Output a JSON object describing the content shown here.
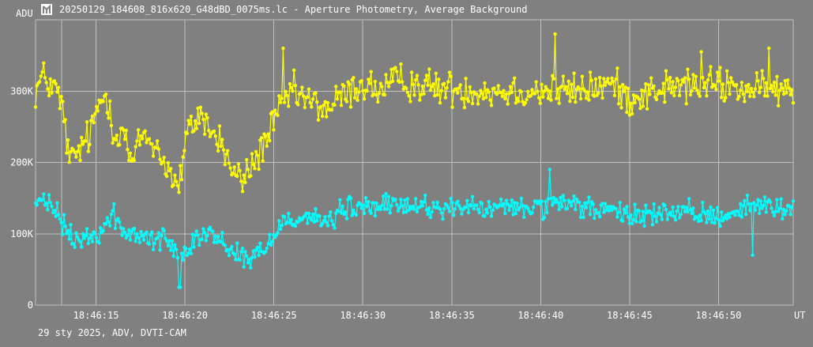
{
  "window": {
    "title": "20250129_184608_816x620_G48dBD_0075ms.lc - Aperture Photometry, Average Background",
    "footer": "29 sty 2025, ADV, DVTI-CAM"
  },
  "colors": {
    "background": "#808080",
    "grid": "#c0c0c0",
    "text": "#ffffff",
    "series_target": "#ffff00",
    "series_background": "#00ffff"
  },
  "chart_data": {
    "type": "line",
    "title": "20250129_184608_816x620_G48dBD_0075ms.lc - Aperture Photometry, Average Background",
    "ylabel": "ADU",
    "xlabel": "UT",
    "grid": true,
    "ylim": [
      0,
      400000
    ],
    "xlim": [
      "18:46:11.6",
      "18:46:54.2"
    ],
    "y_ticks": [
      {
        "value": 0,
        "label": "0"
      },
      {
        "value": 100000,
        "label": "100K"
      },
      {
        "value": 200000,
        "label": "200K"
      },
      {
        "value": 300000,
        "label": "300K"
      }
    ],
    "x_ticks": [
      {
        "value": 3,
        "label": "18:46:15"
      },
      {
        "value": 8,
        "label": "18:46:20"
      },
      {
        "value": 13,
        "label": "18:46:25"
      },
      {
        "value": 18,
        "label": "18:46:30"
      },
      {
        "value": 23,
        "label": "18:46:35"
      },
      {
        "value": 28,
        "label": "18:46:40"
      },
      {
        "value": 33,
        "label": "18:46:45"
      },
      {
        "value": 38,
        "label": "18:46:50"
      }
    ],
    "x_range_seconds_after_18_46_12": [
      -0.4,
      42.2
    ],
    "points_per_series": 561,
    "series": [
      {
        "id": "target",
        "color": "#ffff00",
        "profile": [
          [
            -0.4,
            300000
          ],
          [
            0.0,
            320000
          ],
          [
            0.8,
            300000
          ],
          [
            1.2,
            265000
          ],
          [
            1.5,
            200000
          ],
          [
            2.0,
            215000
          ],
          [
            2.7,
            240000
          ],
          [
            3.2,
            285000
          ],
          [
            3.6,
            295000
          ],
          [
            4.1,
            235000
          ],
          [
            4.5,
            250000
          ],
          [
            5.0,
            195000
          ],
          [
            5.6,
            240000
          ],
          [
            6.3,
            225000
          ],
          [
            7.1,
            190000
          ],
          [
            7.6,
            160000
          ],
          [
            8.2,
            245000
          ],
          [
            8.9,
            270000
          ],
          [
            9.5,
            240000
          ],
          [
            10.0,
            230000
          ],
          [
            10.7,
            185000
          ],
          [
            11.2,
            175000
          ],
          [
            11.8,
            195000
          ],
          [
            12.4,
            225000
          ],
          [
            13.0,
            255000
          ],
          [
            13.5,
            280000
          ],
          [
            14.0,
            300000
          ],
          [
            15.0,
            285000
          ],
          [
            16.0,
            275000
          ],
          [
            17.0,
            295000
          ],
          [
            18.0,
            310000
          ],
          [
            19.0,
            300000
          ],
          [
            20.0,
            315000
          ],
          [
            22.0,
            305000
          ],
          [
            25.0,
            300000
          ],
          [
            30.0,
            300000
          ],
          [
            32.0,
            310000
          ],
          [
            33.0,
            290000
          ],
          [
            35.0,
            305000
          ],
          [
            38.0,
            310000
          ],
          [
            40.0,
            300000
          ],
          [
            42.2,
            300000
          ]
        ],
        "noise": 28000,
        "peaks": [
          {
            "x": 13.5,
            "value": 360000
          },
          {
            "x": 28.8,
            "value": 380000
          },
          {
            "x": 37.0,
            "value": 355000
          },
          {
            "x": 40.8,
            "value": 360000
          }
        ]
      },
      {
        "id": "background",
        "color": "#00ffff",
        "profile": [
          [
            -0.4,
            145000
          ],
          [
            0.5,
            140000
          ],
          [
            1.0,
            120000
          ],
          [
            1.5,
            95000
          ],
          [
            2.5,
            90000
          ],
          [
            3.5,
            110000
          ],
          [
            4.0,
            130000
          ],
          [
            4.5,
            100000
          ],
          [
            6.0,
            95000
          ],
          [
            7.0,
            90000
          ],
          [
            7.8,
            70000
          ],
          [
            8.5,
            95000
          ],
          [
            9.5,
            100000
          ],
          [
            10.5,
            80000
          ],
          [
            11.5,
            65000
          ],
          [
            12.5,
            75000
          ],
          [
            13.0,
            100000
          ],
          [
            13.5,
            120000
          ],
          [
            15.0,
            125000
          ],
          [
            16.0,
            115000
          ],
          [
            17.0,
            135000
          ],
          [
            20.0,
            140000
          ],
          [
            25.0,
            135000
          ],
          [
            30.0,
            140000
          ],
          [
            33.0,
            125000
          ],
          [
            35.0,
            130000
          ],
          [
            38.0,
            125000
          ],
          [
            40.0,
            140000
          ],
          [
            42.2,
            135000
          ]
        ],
        "noise": 18000,
        "peaks": [
          {
            "x": 7.7,
            "value": 25000
          },
          {
            "x": 28.5,
            "value": 190000
          },
          {
            "x": 39.9,
            "value": 70000
          }
        ]
      }
    ]
  }
}
